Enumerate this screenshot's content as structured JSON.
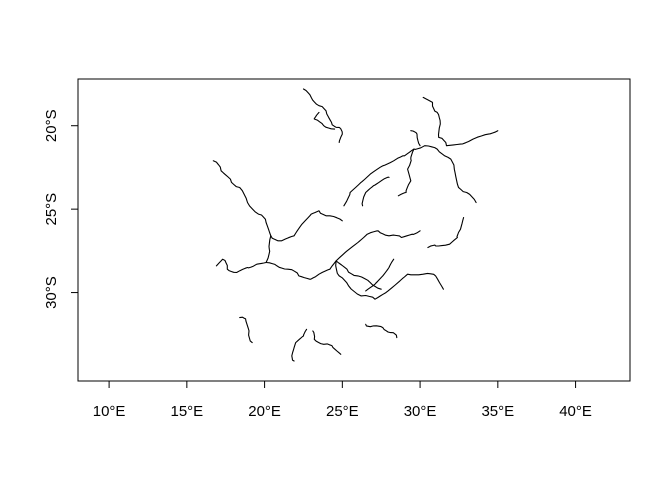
{
  "chart_data": {
    "type": "map",
    "title": "",
    "xlabel": "",
    "ylabel": "",
    "xlim": [
      8,
      43.5
    ],
    "ylim": [
      -35.3,
      -17.2
    ],
    "x_ticks": [
      {
        "value": 10,
        "label": "10°E"
      },
      {
        "value": 15,
        "label": "15°E"
      },
      {
        "value": 20,
        "label": "20°E"
      },
      {
        "value": 25,
        "label": "25°E"
      },
      {
        "value": 30,
        "label": "30°E"
      },
      {
        "value": 35,
        "label": "35°E"
      },
      {
        "value": 40,
        "label": "40°E"
      }
    ],
    "y_ticks": [
      {
        "value": -20,
        "label": "20°S"
      },
      {
        "value": -25,
        "label": "25°S"
      },
      {
        "value": -30,
        "label": "30°S"
      }
    ],
    "grid": false,
    "line_color": "#000000",
    "features": [
      {
        "kind": "river",
        "coords": [
          [
            22.5,
            -17.8
          ],
          [
            23.0,
            -18.3
          ],
          [
            23.5,
            -18.8
          ],
          [
            24.0,
            -19.3
          ],
          [
            24.3,
            -19.8
          ],
          [
            24.8,
            -20.1
          ],
          [
            25.0,
            -20.5
          ],
          [
            24.8,
            -21.0
          ]
        ]
      },
      {
        "kind": "river",
        "coords": [
          [
            23.5,
            -19.2
          ],
          [
            23.2,
            -19.6
          ],
          [
            23.8,
            -20.0
          ],
          [
            24.5,
            -20.2
          ]
        ]
      },
      {
        "kind": "river",
        "coords": [
          [
            30.2,
            -18.3
          ],
          [
            30.8,
            -18.6
          ],
          [
            31.1,
            -19.2
          ],
          [
            31.3,
            -19.9
          ],
          [
            31.2,
            -20.7
          ],
          [
            31.7,
            -21.2
          ],
          [
            32.6,
            -21.1
          ],
          [
            33.4,
            -20.8
          ],
          [
            34.4,
            -20.5
          ],
          [
            35.0,
            -20.3
          ]
        ]
      },
      {
        "kind": "river",
        "coords": [
          [
            16.7,
            -22.1
          ],
          [
            17.2,
            -22.7
          ],
          [
            17.8,
            -23.2
          ],
          [
            18.4,
            -23.7
          ],
          [
            18.9,
            -24.6
          ],
          [
            19.6,
            -25.3
          ],
          [
            20.1,
            -25.8
          ],
          [
            20.4,
            -26.6
          ],
          [
            21.1,
            -26.9
          ],
          [
            21.9,
            -26.6
          ],
          [
            22.4,
            -25.9
          ],
          [
            23.0,
            -25.3
          ],
          [
            23.5,
            -25.1
          ],
          [
            24.2,
            -25.4
          ],
          [
            25.0,
            -25.7
          ]
        ]
      },
      {
        "kind": "river",
        "coords": [
          [
            20.4,
            -26.6
          ],
          [
            20.3,
            -27.4
          ],
          [
            20.1,
            -28.2
          ],
          [
            19.5,
            -28.3
          ],
          [
            18.9,
            -28.5
          ],
          [
            18.2,
            -28.8
          ],
          [
            17.6,
            -28.6
          ],
          [
            17.3,
            -28.0
          ],
          [
            16.9,
            -28.4
          ]
        ]
      },
      {
        "kind": "river",
        "coords": [
          [
            20.1,
            -28.2
          ],
          [
            20.8,
            -28.4
          ],
          [
            21.5,
            -28.6
          ],
          [
            22.2,
            -29.0
          ],
          [
            22.9,
            -29.2
          ],
          [
            23.5,
            -28.9
          ],
          [
            24.2,
            -28.6
          ],
          [
            24.6,
            -28.1
          ],
          [
            25.3,
            -27.5
          ],
          [
            26.0,
            -27.0
          ],
          [
            26.6,
            -26.5
          ],
          [
            27.3,
            -26.3
          ],
          [
            28.0,
            -26.6
          ],
          [
            28.8,
            -26.7
          ],
          [
            29.5,
            -26.5
          ],
          [
            30.0,
            -26.3
          ]
        ]
      },
      {
        "kind": "river",
        "coords": [
          [
            24.6,
            -28.1
          ],
          [
            24.8,
            -29.0
          ],
          [
            25.4,
            -29.6
          ],
          [
            26.2,
            -30.2
          ],
          [
            27.1,
            -30.4
          ],
          [
            27.8,
            -30.0
          ],
          [
            28.7,
            -29.3
          ],
          [
            29.2,
            -28.9
          ],
          [
            30.2,
            -28.9
          ],
          [
            31.0,
            -29.0
          ],
          [
            31.5,
            -29.8
          ]
        ]
      },
      {
        "kind": "river",
        "coords": [
          [
            24.6,
            -28.1
          ],
          [
            25.3,
            -28.6
          ],
          [
            26.0,
            -29.0
          ],
          [
            26.8,
            -29.4
          ],
          [
            27.5,
            -29.8
          ]
        ]
      },
      {
        "kind": "river",
        "coords": [
          [
            25.1,
            -24.8
          ],
          [
            25.5,
            -24.0
          ],
          [
            26.2,
            -23.4
          ],
          [
            26.8,
            -22.9
          ],
          [
            27.6,
            -22.4
          ],
          [
            28.3,
            -22.1
          ],
          [
            29.0,
            -21.8
          ],
          [
            29.6,
            -21.4
          ],
          [
            30.3,
            -21.2
          ],
          [
            31.1,
            -21.4
          ],
          [
            31.8,
            -21.9
          ],
          [
            32.2,
            -22.6
          ],
          [
            32.4,
            -23.5
          ],
          [
            33.0,
            -24.0
          ],
          [
            33.6,
            -24.6
          ]
        ]
      },
      {
        "kind": "river",
        "coords": [
          [
            29.6,
            -21.4
          ],
          [
            29.4,
            -22.0
          ],
          [
            29.2,
            -22.6
          ],
          [
            29.4,
            -23.3
          ],
          [
            29.1,
            -24.0
          ],
          [
            28.6,
            -24.2
          ]
        ]
      },
      {
        "kind": "river",
        "coords": [
          [
            29.4,
            -20.3
          ],
          [
            29.8,
            -20.5
          ],
          [
            30.0,
            -21.2
          ]
        ]
      },
      {
        "kind": "river",
        "coords": [
          [
            26.3,
            -24.8
          ],
          [
            26.5,
            -24.0
          ],
          [
            27.0,
            -23.6
          ],
          [
            27.5,
            -23.3
          ],
          [
            28.0,
            -23.1
          ]
        ]
      },
      {
        "kind": "river",
        "coords": [
          [
            32.8,
            -25.5
          ],
          [
            32.6,
            -26.2
          ],
          [
            32.4,
            -26.7
          ],
          [
            31.9,
            -27.1
          ],
          [
            31.0,
            -27.2
          ],
          [
            30.5,
            -27.3
          ]
        ]
      },
      {
        "kind": "river",
        "coords": [
          [
            18.4,
            -31.5
          ],
          [
            18.8,
            -31.7
          ],
          [
            19.0,
            -32.3
          ],
          [
            19.2,
            -33.0
          ]
        ]
      },
      {
        "kind": "river",
        "coords": [
          [
            22.7,
            -32.2
          ],
          [
            22.5,
            -32.6
          ],
          [
            22.0,
            -33.0
          ],
          [
            21.8,
            -33.6
          ],
          [
            21.9,
            -34.1
          ]
        ]
      },
      {
        "kind": "river",
        "coords": [
          [
            23.1,
            -32.3
          ],
          [
            23.2,
            -32.8
          ],
          [
            23.8,
            -33.1
          ],
          [
            24.4,
            -33.3
          ],
          [
            24.9,
            -33.7
          ]
        ]
      },
      {
        "kind": "river",
        "coords": [
          [
            26.5,
            -31.9
          ],
          [
            27.0,
            -32.0
          ],
          [
            27.6,
            -32.1
          ],
          [
            28.1,
            -32.4
          ],
          [
            28.5,
            -32.7
          ]
        ]
      },
      {
        "kind": "river",
        "coords": [
          [
            26.5,
            -29.9
          ],
          [
            27.1,
            -29.5
          ],
          [
            27.6,
            -29.0
          ],
          [
            28.0,
            -28.5
          ],
          [
            28.3,
            -28.0
          ]
        ]
      }
    ]
  }
}
